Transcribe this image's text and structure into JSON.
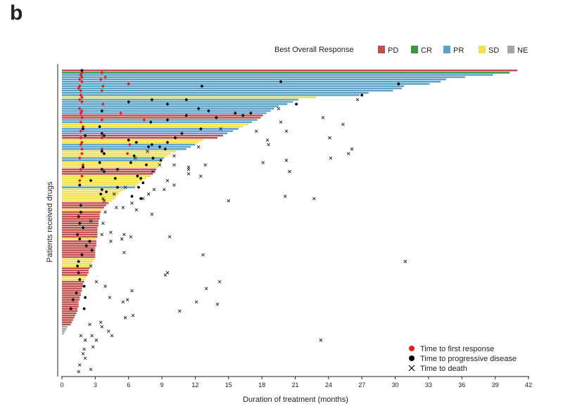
{
  "panel_label": "b",
  "chart_data": {
    "type": "bar",
    "orientation": "horizontal",
    "title": "",
    "xlabel": "Duration of treatment (months)",
    "ylabel": "Patients received drugs",
    "xlim": [
      0,
      42
    ],
    "xticks": [
      0,
      3,
      6,
      9,
      12,
      15,
      18,
      21,
      24,
      27,
      30,
      33,
      36,
      39,
      42
    ],
    "legend_top": {
      "title": "Best Overall Response",
      "placement": "top-right",
      "entries": [
        {
          "label": "PD",
          "color": "#c0504d"
        },
        {
          "label": "CR",
          "color": "#3a9a3a"
        },
        {
          "label": "PR",
          "color": "#5ba3c9"
        },
        {
          "label": "SD",
          "color": "#f2e14c"
        },
        {
          "label": "NE",
          "color": "#a6a6a6"
        }
      ]
    },
    "legend_bottom": {
      "placement": "bottom-right",
      "entries": [
        {
          "label": "Time to first response",
          "symbol": "dot",
          "color": "#e02020"
        },
        {
          "label": "Time to progressive disease",
          "symbol": "dot",
          "color": "#000000"
        },
        {
          "label": "Time to death",
          "symbol": "cross",
          "color": "#000000"
        }
      ]
    },
    "bar_groups": [
      {
        "response": "PD",
        "duration": 41.0,
        "count": 1
      },
      {
        "response": "CR",
        "duration": 40.3,
        "count": 1
      },
      {
        "response": "PR",
        "durations": [
          38.8,
          36.3,
          34.6,
          34.1,
          33.1,
          30.8,
          30.6,
          29.8,
          27.6,
          26.8
        ]
      },
      {
        "response": "SD",
        "durations": [
          22.9
        ]
      },
      {
        "response": "PR",
        "durations": [
          21.3,
          20.8,
          20.3,
          19.5,
          19.1,
          18.8,
          18.4
        ]
      },
      {
        "response": "PD",
        "durations": [
          18.1,
          17.9
        ]
      },
      {
        "response": "PR",
        "durations": [
          17.6,
          17.1
        ]
      },
      {
        "response": "SD",
        "durations": [
          16.8,
          16.3
        ]
      },
      {
        "response": "PR",
        "durations": [
          15.9,
          15.4,
          14.9
        ]
      },
      {
        "response": "PD",
        "durations": [
          14.5,
          14.0
        ]
      },
      {
        "response": "SD",
        "durations": [
          12.7,
          12.3
        ]
      },
      {
        "response": "PR",
        "durations": [
          12.0,
          11.6,
          11.2
        ]
      },
      {
        "response": "SD",
        "durations": [
          10.3,
          9.8,
          9.5
        ]
      },
      {
        "response": "PR",
        "durations": [
          9.2,
          9.0
        ]
      },
      {
        "response": "SD",
        "durations": [
          8.9,
          8.8,
          8.7
        ]
      },
      {
        "response": "PD",
        "durations": [
          8.5,
          8.4,
          8.2
        ]
      },
      {
        "response": "SD",
        "durations": [
          8.0,
          7.6,
          7.2,
          7.0,
          6.8
        ]
      },
      {
        "response": "PR",
        "durations": [
          6.6
        ]
      },
      {
        "response": "SD",
        "durations": [
          5.6,
          5.3,
          5.1,
          4.9,
          4.8,
          4.5
        ]
      },
      {
        "response": "PD",
        "durations": [
          4.2,
          4.0,
          3.8
        ]
      },
      {
        "response": "SD",
        "durations": [
          3.6
        ]
      },
      {
        "response": "PD",
        "durations": [
          3.5,
          3.4,
          3.4,
          3.4,
          3.3,
          3.3,
          3.3,
          3.2,
          3.2,
          3.2,
          3.2,
          3.2
        ]
      },
      {
        "response": "SD",
        "durations": [
          3.1
        ]
      },
      {
        "response": "PD",
        "durations": [
          3.1,
          3.1,
          3.1,
          3.0,
          3.0,
          3.0,
          3.0,
          3.0
        ]
      },
      {
        "response": "SD",
        "durations": [
          2.9,
          2.8,
          2.7,
          2.6
        ]
      },
      {
        "response": "PD",
        "durations": [
          2.5,
          2.4,
          2.4,
          2.3
        ]
      },
      {
        "response": "SD",
        "durations": [
          2.2,
          2.1
        ]
      },
      {
        "response": "PD",
        "durations": [
          2.0,
          1.9,
          1.9,
          1.8,
          1.8,
          1.7,
          1.7,
          1.6,
          1.6,
          1.5,
          1.5,
          1.5,
          1.4,
          1.4,
          1.3,
          1.2,
          1.1,
          1.0,
          0.9,
          0.8
        ]
      },
      {
        "response": "NE",
        "durations": [
          0.5,
          0.4,
          0.3,
          0.2
        ]
      }
    ],
    "first_response_points": [
      [
        1.8,
        1
      ],
      [
        3.6,
        1
      ],
      [
        1.7,
        2
      ],
      [
        1.8,
        3
      ],
      [
        3.9,
        3
      ],
      [
        1.6,
        4
      ],
      [
        3.5,
        4
      ],
      [
        1.8,
        5
      ],
      [
        6.0,
        6
      ],
      [
        1.6,
        7
      ],
      [
        3.7,
        7
      ],
      [
        1.5,
        8
      ],
      [
        1.7,
        9
      ],
      [
        3.6,
        9
      ],
      [
        1.7,
        11
      ],
      [
        1.8,
        12
      ],
      [
        1.6,
        13
      ],
      [
        1.8,
        14
      ],
      [
        3.7,
        15
      ],
      [
        1.6,
        17
      ],
      [
        1.8,
        18
      ],
      [
        1.7,
        19
      ],
      [
        5.3,
        19
      ],
      [
        1.8,
        21
      ],
      [
        3.6,
        22
      ],
      [
        7.4,
        22
      ],
      [
        1.7,
        23
      ],
      [
        1.9,
        25
      ],
      [
        1.7,
        27
      ],
      [
        1.7,
        30
      ],
      [
        3.6,
        30
      ],
      [
        1.8,
        32
      ],
      [
        1.7,
        33
      ],
      [
        6.1,
        33
      ],
      [
        1.8,
        35
      ],
      [
        3.6,
        35
      ],
      [
        1.8,
        37
      ],
      [
        5.9,
        37
      ],
      [
        1.6,
        39
      ],
      [
        1.9,
        42
      ],
      [
        1.7,
        44
      ],
      [
        1.8,
        47
      ],
      [
        1.6,
        49
      ]
    ],
    "progression_points": [
      [
        1.8,
        0
      ],
      [
        12.6,
        7
      ],
      [
        19.7,
        5
      ],
      [
        30.3,
        6
      ],
      [
        27.0,
        11
      ],
      [
        21.1,
        15
      ],
      [
        6.0,
        14
      ],
      [
        8.1,
        13
      ],
      [
        9.5,
        15
      ],
      [
        11.2,
        13
      ],
      [
        12.3,
        17
      ],
      [
        13.2,
        18
      ],
      [
        15.6,
        19
      ],
      [
        16.3,
        20
      ],
      [
        17.0,
        19
      ],
      [
        13.9,
        21
      ],
      [
        11.2,
        20
      ],
      [
        9.5,
        22
      ],
      [
        8.0,
        23
      ],
      [
        3.6,
        18
      ],
      [
        3.4,
        25
      ],
      [
        1.9,
        26
      ],
      [
        12.5,
        26
      ],
      [
        10.8,
        28
      ],
      [
        3.6,
        28
      ],
      [
        2.1,
        29
      ],
      [
        3.8,
        29
      ],
      [
        10.2,
        30
      ],
      [
        9.5,
        32
      ],
      [
        6.7,
        32
      ],
      [
        6.0,
        31
      ],
      [
        8.1,
        33
      ],
      [
        8.8,
        34
      ],
      [
        7.8,
        34
      ],
      [
        3.6,
        36
      ],
      [
        3.8,
        37
      ],
      [
        9.3,
        35
      ],
      [
        6.5,
        38
      ],
      [
        8.2,
        39
      ],
      [
        6.2,
        41
      ],
      [
        3.4,
        41
      ],
      [
        8.9,
        40
      ],
      [
        7.6,
        42
      ],
      [
        1.9,
        43
      ],
      [
        3.6,
        44
      ],
      [
        5.0,
        44
      ],
      [
        3.8,
        45
      ],
      [
        6.8,
        47
      ],
      [
        4.8,
        48
      ],
      [
        2.6,
        49
      ],
      [
        7.1,
        48
      ],
      [
        7.3,
        50
      ],
      [
        1.6,
        51
      ],
      [
        6.9,
        52
      ],
      [
        5.0,
        52
      ],
      [
        3.6,
        53
      ],
      [
        4.0,
        54
      ],
      [
        3.5,
        55
      ],
      [
        6.3,
        56
      ],
      [
        7.1,
        57
      ],
      [
        1.7,
        60
      ],
      [
        1.7,
        63
      ],
      [
        1.5,
        65
      ],
      [
        1.6,
        68
      ],
      [
        1.9,
        70
      ],
      [
        1.4,
        73
      ],
      [
        1.6,
        75
      ],
      [
        2.5,
        76
      ],
      [
        2.2,
        78
      ],
      [
        2.7,
        80
      ],
      [
        1.8,
        82
      ],
      [
        1.5,
        85
      ],
      [
        1.4,
        87
      ],
      [
        1.5,
        90
      ],
      [
        1.6,
        93
      ],
      [
        2.0,
        96
      ],
      [
        1.3,
        99
      ],
      [
        1.0,
        102
      ],
      [
        2.1,
        101
      ],
      [
        0.8,
        106
      ],
      [
        2.0,
        106
      ]
    ],
    "death_points": [
      [
        26.6,
        13
      ],
      [
        19.5,
        17
      ],
      [
        23.5,
        21
      ],
      [
        19.7,
        23
      ],
      [
        25.3,
        24
      ],
      [
        17.5,
        27
      ],
      [
        14.3,
        26
      ],
      [
        20.2,
        27
      ],
      [
        24.1,
        30
      ],
      [
        18.5,
        31
      ],
      [
        12.3,
        34
      ],
      [
        18.6,
        33
      ],
      [
        26.1,
        35
      ],
      [
        7.7,
        36
      ],
      [
        25.8,
        37
      ],
      [
        10.1,
        38
      ],
      [
        24.2,
        39
      ],
      [
        20.2,
        40
      ],
      [
        6.6,
        39
      ],
      [
        18.1,
        41
      ],
      [
        11.4,
        43
      ],
      [
        10.1,
        42
      ],
      [
        12.9,
        42
      ],
      [
        11.4,
        44
      ],
      [
        8.8,
        42
      ],
      [
        20.5,
        45
      ],
      [
        8.2,
        45
      ],
      [
        11.4,
        46
      ],
      [
        12.5,
        47
      ],
      [
        9.5,
        49
      ],
      [
        5.7,
        52
      ],
      [
        10.1,
        51
      ],
      [
        20.1,
        56
      ],
      [
        8.3,
        53
      ],
      [
        4.7,
        55
      ],
      [
        9.2,
        53
      ],
      [
        3.7,
        57
      ],
      [
        7.8,
        55
      ],
      [
        3.8,
        58
      ],
      [
        6.3,
        59
      ],
      [
        15.0,
        58
      ],
      [
        7.3,
        57
      ],
      [
        5.5,
        61
      ],
      [
        22.7,
        57
      ],
      [
        4.9,
        61
      ],
      [
        3.9,
        63
      ],
      [
        6.7,
        62
      ],
      [
        8.1,
        64
      ],
      [
        3.7,
        68
      ],
      [
        2.6,
        67
      ],
      [
        9.7,
        74
      ],
      [
        3.6,
        73
      ],
      [
        4.4,
        72
      ],
      [
        5.6,
        73
      ],
      [
        6.2,
        74
      ],
      [
        4.4,
        76
      ],
      [
        5.4,
        75
      ],
      [
        5.6,
        81
      ],
      [
        12.7,
        82
      ],
      [
        30.9,
        85
      ],
      [
        9.5,
        90
      ],
      [
        2.6,
        87
      ],
      [
        14.2,
        94
      ],
      [
        3.1,
        94
      ],
      [
        3.9,
        96
      ],
      [
        13.0,
        97
      ],
      [
        6.3,
        98
      ],
      [
        9.3,
        91
      ],
      [
        12.1,
        103
      ],
      [
        14.0,
        104
      ],
      [
        5.9,
        102
      ],
      [
        5.5,
        103
      ],
      [
        4.3,
        101
      ],
      [
        6.4,
        109
      ],
      [
        5.7,
        110
      ],
      [
        10.6,
        107
      ],
      [
        2.5,
        113
      ],
      [
        3.5,
        112
      ],
      [
        3.6,
        114
      ],
      [
        4.2,
        116
      ],
      [
        2.7,
        118
      ],
      [
        3.1,
        120
      ],
      [
        1.7,
        118
      ],
      [
        2.1,
        120
      ],
      [
        4.5,
        118
      ],
      [
        23.3,
        120
      ],
      [
        2.0,
        124
      ],
      [
        1.9,
        126
      ]
    ],
    "bottom_markers": [
      [
        2.8,
        123
      ],
      [
        2.1,
        128
      ],
      [
        1.6,
        131
      ],
      [
        2.6,
        133
      ],
      [
        1.5,
        134
      ]
    ]
  }
}
